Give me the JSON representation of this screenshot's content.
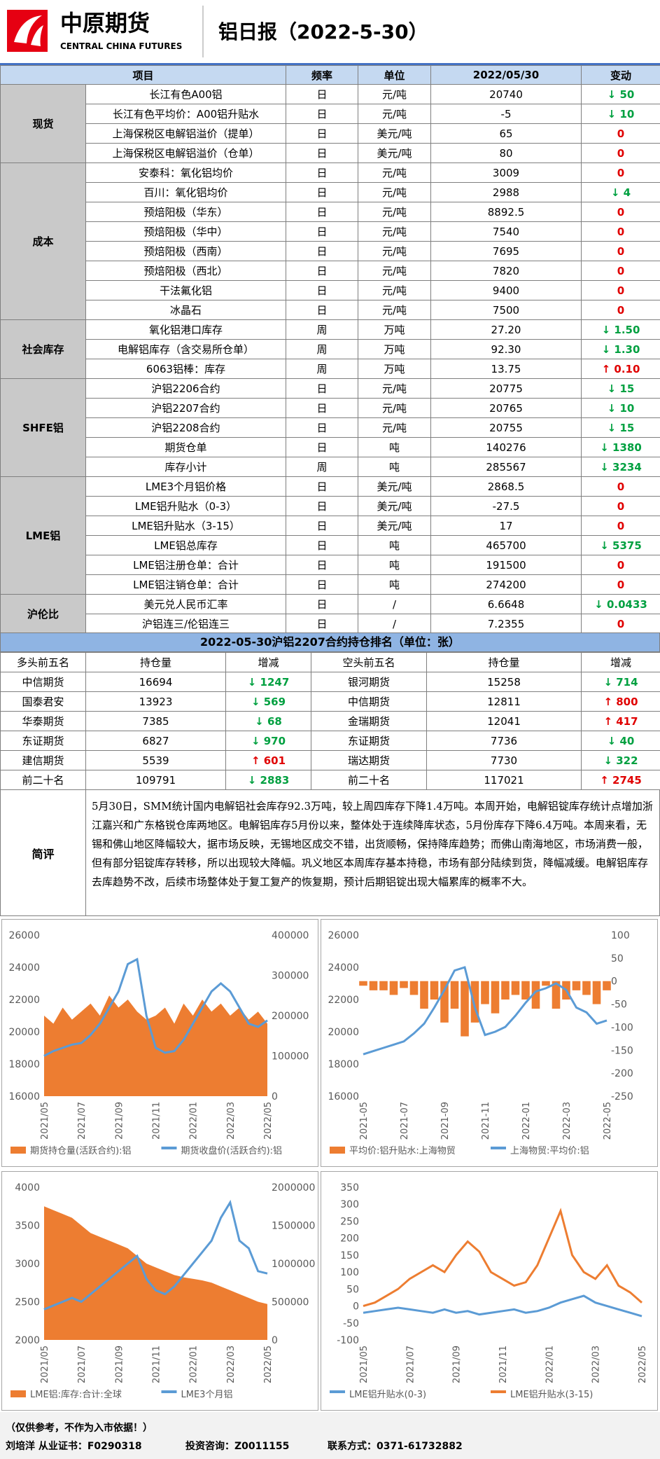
{
  "header": {
    "brand_cn": "中原期货",
    "brand_en": "CENTRAL CHINA FUTURES",
    "title": "铝日报（2022-5-30）"
  },
  "table": {
    "columns": [
      "项目",
      "频率",
      "单位",
      "2022/05/30",
      "变动"
    ],
    "groups": [
      {
        "name": "现货",
        "rows": [
          [
            "长江有色A00铝",
            "日",
            "元/吨",
            "20740",
            "↓ 50"
          ],
          [
            "长江有色平均价：A00铝升贴水",
            "日",
            "元/吨",
            "-5",
            "↓ 10"
          ],
          [
            "上海保税区电解铝溢价（提单）",
            "日",
            "美元/吨",
            "65",
            "0"
          ],
          [
            "上海保税区电解铝溢价（仓单）",
            "日",
            "美元/吨",
            "80",
            "0"
          ]
        ]
      },
      {
        "name": "成本",
        "rows": [
          [
            "安泰科：氧化铝均价",
            "日",
            "元/吨",
            "3009",
            "0"
          ],
          [
            "百川：氧化铝均价",
            "日",
            "元/吨",
            "2988",
            "↓ 4"
          ],
          [
            "预焙阳极（华东）",
            "日",
            "元/吨",
            "8892.5",
            "0"
          ],
          [
            "预焙阳极（华中）",
            "日",
            "元/吨",
            "7540",
            "0"
          ],
          [
            "预焙阳极（西南）",
            "日",
            "元/吨",
            "7695",
            "0"
          ],
          [
            "预焙阳极（西北）",
            "日",
            "元/吨",
            "7820",
            "0"
          ],
          [
            "干法氟化铝",
            "日",
            "元/吨",
            "9400",
            "0"
          ],
          [
            "冰晶石",
            "日",
            "元/吨",
            "7500",
            "0"
          ]
        ]
      },
      {
        "name": "社会库存",
        "rows": [
          [
            "氧化铝港口库存",
            "周",
            "万吨",
            "27.20",
            "↓ 1.50"
          ],
          [
            "电解铝库存（含交易所仓单）",
            "周",
            "万吨",
            "92.30",
            "↓ 1.30"
          ],
          [
            "6063铝棒：库存",
            "周",
            "万吨",
            "13.75",
            "↑ 0.10"
          ]
        ]
      },
      {
        "name": "SHFE铝",
        "rows": [
          [
            "沪铝2206合约",
            "日",
            "元/吨",
            "20775",
            "↓ 15"
          ],
          [
            "沪铝2207合约",
            "日",
            "元/吨",
            "20765",
            "↓ 10"
          ],
          [
            "沪铝2208合约",
            "日",
            "元/吨",
            "20755",
            "↓ 15"
          ],
          [
            "期货仓单",
            "日",
            "吨",
            "140276",
            "↓ 1380"
          ],
          [
            "库存小计",
            "周",
            "吨",
            "285567",
            "↓ 3234"
          ]
        ]
      },
      {
        "name": "LME铝",
        "rows": [
          [
            "LME3个月铝价格",
            "日",
            "美元/吨",
            "2868.5",
            "0"
          ],
          [
            "LME铝升贴水（0-3）",
            "日",
            "美元/吨",
            "-27.5",
            "0"
          ],
          [
            "LME铝升贴水（3-15）",
            "日",
            "美元/吨",
            "17",
            "0"
          ],
          [
            "LME铝总库存",
            "日",
            "吨",
            "465700",
            "↓ 5375"
          ],
          [
            "LME铝注册仓单：合计",
            "日",
            "吨",
            "191500",
            "0"
          ],
          [
            "LME铝注销仓单：合计",
            "日",
            "吨",
            "274200",
            "0"
          ]
        ]
      },
      {
        "name": "沪伦比",
        "rows": [
          [
            "美元兑人民币汇率",
            "日",
            "/",
            "6.6648",
            "↓ 0.0433"
          ],
          [
            "沪铝连三/伦铝连三",
            "日",
            "/",
            "7.2355",
            "0"
          ]
        ]
      }
    ]
  },
  "position": {
    "title": "2022-05-30沪铝2207合约持仓排名（单位：张）",
    "columns": [
      "多头前五名",
      "持仓量",
      "增减",
      "空头前五名",
      "持仓量",
      "增减"
    ],
    "rows": [
      [
        "中信期货",
        "16694",
        "↓ 1247",
        "银河期货",
        "15258",
        "↓ 714"
      ],
      [
        "国泰君安",
        "13923",
        "↓ 569",
        "中信期货",
        "12811",
        "↑ 800"
      ],
      [
        "华泰期货",
        "7385",
        "↓ 68",
        "金瑞期货",
        "12041",
        "↑ 417"
      ],
      [
        "东证期货",
        "6827",
        "↓ 970",
        "东证期货",
        "7736",
        "↓ 40"
      ],
      [
        "建信期货",
        "5539",
        "↑ 601",
        "瑞达期货",
        "7730",
        "↓ 322"
      ],
      [
        "前二十名",
        "109791",
        "↓ 2883",
        "前二十名",
        "117021",
        "↑ 2745"
      ]
    ]
  },
  "comment": {
    "label": "简评",
    "text": "5月30日，SMM统计国内电解铝社会库存92.3万吨，较上周四库存下降1.4万吨。本周开始，电解铝锭库存统计点增加浙江嘉兴和广东格锐仓库两地区。电解铝库存5月份以来，整体处于连续降库状态，5月份库存下降6.4万吨。本周来看，无锡和佛山地区降幅较大，据市场反映，无锡地区成交不错，出货顺畅，保持降库趋势；而佛山南海地区，市场消费一般，但有部分铝锭库存转移，所以出现较大降幅。巩义地区本周库存基本持稳，市场有部分陆续到货，降幅减缓。电解铝库存去库趋势不改，后续市场整体处于复工复产的恢复期，预计后期铝锭出现大幅累库的概率不大。"
  },
  "chart_data": [
    {
      "type": "combo",
      "categories": [
        "2021/05",
        null,
        null,
        null,
        "2021/07",
        null,
        null,
        null,
        "2021/09",
        null,
        null,
        null,
        "2021/11",
        null,
        null,
        null,
        "2022/01",
        null,
        null,
        null,
        "2022/03",
        null,
        null,
        null,
        "2022/05"
      ],
      "ylim": [
        16000,
        26000
      ],
      "yticks": [
        16000,
        18000,
        20000,
        22000,
        24000,
        26000
      ],
      "y2lim": [
        0,
        400000
      ],
      "y2ticks": [
        0,
        100000,
        200000,
        300000,
        400000
      ],
      "series": [
        {
          "name": "期货持仓量(活跃合约):铝",
          "type": "area",
          "axis": "y2",
          "color": "#ed7d31",
          "values": [
            200000,
            180000,
            220000,
            190000,
            210000,
            230000,
            200000,
            250000,
            220000,
            240000,
            210000,
            190000,
            200000,
            220000,
            180000,
            230000,
            200000,
            240000,
            210000,
            230000,
            200000,
            220000,
            190000,
            210000,
            180000
          ]
        },
        {
          "name": "期货收盘价(活跃合约):铝",
          "type": "line",
          "color": "#5b9bd5",
          "values": [
            18500,
            18800,
            19000,
            19200,
            19300,
            19800,
            20500,
            21500,
            22500,
            24200,
            24500,
            21000,
            19000,
            18700,
            18800,
            19500,
            20500,
            21500,
            22500,
            23000,
            22500,
            21500,
            20500,
            20300,
            20700
          ]
        }
      ]
    },
    {
      "type": "combo",
      "categories": [
        "2021-05",
        null,
        null,
        null,
        "2021-07",
        null,
        null,
        null,
        "2021-09",
        null,
        null,
        null,
        "2021-11",
        null,
        null,
        null,
        "2022-01",
        null,
        null,
        null,
        "2022-03",
        null,
        null,
        null,
        "2022-05"
      ],
      "ylim": [
        16000,
        26000
      ],
      "yticks": [
        16000,
        18000,
        20000,
        22000,
        24000,
        26000
      ],
      "y2lim": [
        -250,
        100
      ],
      "y2ticks": [
        -250,
        -200,
        -150,
        -100,
        -50,
        0,
        50,
        100
      ],
      "series": [
        {
          "name": "平均价:铝升贴水:上海物贸",
          "type": "bar",
          "axis": "y2",
          "color": "#ed7d31",
          "values": [
            -10,
            -20,
            -20,
            -30,
            -15,
            -30,
            -60,
            -40,
            -90,
            -60,
            -120,
            -90,
            -50,
            -70,
            -40,
            -30,
            -40,
            -60,
            -10,
            -60,
            -40,
            -20,
            -30,
            -50,
            -20
          ]
        },
        {
          "name": "上海物贸:平均价:铝",
          "type": "line",
          "color": "#5b9bd5",
          "values": [
            18600,
            18800,
            19000,
            19200,
            19400,
            19900,
            20500,
            21500,
            22600,
            23800,
            24000,
            21500,
            19800,
            20000,
            20300,
            21000,
            21800,
            22500,
            22700,
            23000,
            22600,
            21500,
            21200,
            20500,
            20700
          ]
        }
      ]
    },
    {
      "type": "combo",
      "categories": [
        "2021/05",
        null,
        null,
        null,
        "2021/07",
        null,
        null,
        null,
        "2021/09",
        null,
        null,
        null,
        "2021/11",
        null,
        null,
        null,
        "2022/01",
        null,
        null,
        null,
        "2022/03",
        null,
        null,
        null,
        "2022/05"
      ],
      "ylim": [
        2000,
        4000
      ],
      "yticks": [
        2000,
        2500,
        3000,
        3500,
        4000
      ],
      "y2lim": [
        0,
        2000000
      ],
      "y2ticks": [
        0,
        500000,
        1000000,
        1500000,
        2000000
      ],
      "series": [
        {
          "name": "LME铝:库存:合计:全球",
          "type": "area",
          "axis": "y2",
          "color": "#ed7d31",
          "values": [
            1750000,
            1700000,
            1650000,
            1600000,
            1500000,
            1400000,
            1350000,
            1300000,
            1250000,
            1200000,
            1100000,
            1000000,
            950000,
            900000,
            850000,
            820000,
            800000,
            780000,
            750000,
            700000,
            650000,
            600000,
            550000,
            500000,
            470000
          ]
        },
        {
          "name": "LME3个月铝",
          "type": "line",
          "color": "#5b9bd5",
          "values": [
            2400,
            2450,
            2500,
            2550,
            2500,
            2600,
            2700,
            2800,
            2900,
            3000,
            3100,
            2800,
            2650,
            2600,
            2700,
            2850,
            3000,
            3150,
            3300,
            3600,
            3800,
            3300,
            3200,
            2900,
            2870
          ]
        }
      ]
    },
    {
      "type": "line",
      "categories": [
        "2021/05",
        null,
        null,
        null,
        "2021/07",
        null,
        null,
        null,
        "2021/09",
        null,
        null,
        null,
        "2021/11",
        null,
        null,
        null,
        "2022/01",
        null,
        null,
        null,
        "2022/03",
        null,
        null,
        null,
        "2022/05"
      ],
      "ylim": [
        -100,
        350
      ],
      "yticks": [
        -100,
        -50,
        0,
        50,
        100,
        150,
        200,
        250,
        300,
        350
      ],
      "series": [
        {
          "name": "LME铝升贴水(0-3)",
          "type": "line",
          "color": "#5b9bd5",
          "values": [
            -20,
            -15,
            -10,
            -5,
            -10,
            -15,
            -20,
            -10,
            -20,
            -15,
            -25,
            -20,
            -15,
            -10,
            -20,
            -15,
            -5,
            10,
            20,
            30,
            10,
            0,
            -10,
            -20,
            -30
          ]
        },
        {
          "name": "LME铝升贴水(3-15)",
          "type": "line",
          "color": "#ed7d31",
          "values": [
            0,
            10,
            30,
            50,
            80,
            100,
            120,
            100,
            150,
            190,
            160,
            100,
            80,
            60,
            70,
            120,
            200,
            280,
            150,
            100,
            80,
            120,
            60,
            40,
            10
          ]
        }
      ]
    }
  ],
  "footer": {
    "note": "（仅供参考，不作为入市依据！）",
    "analyst": "刘培洋  从业证书：F0290318",
    "advisory": "投资咨询：Z0011155",
    "contact": "联系方式：0371-61732882"
  }
}
